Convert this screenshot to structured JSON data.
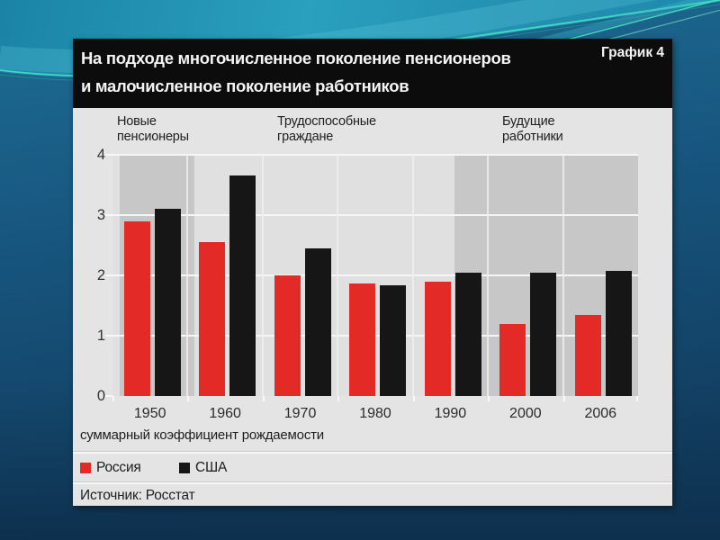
{
  "slide": {
    "corner_label": "График 4"
  },
  "header": {
    "title_line1": "На подходе многочисленное поколение пенсионеров",
    "title_line2": "и малочисленное поколение работников"
  },
  "chart_data": {
    "type": "bar",
    "title": "На подходе многочисленное поколение пенсионеров и малочисленное поколение работников",
    "categories": [
      "1950",
      "1960",
      "1970",
      "1980",
      "1990",
      "2000",
      "2006"
    ],
    "series": [
      {
        "name": "Россия",
        "color": "#e32a26",
        "values": [
          2.9,
          2.55,
          2.0,
          1.87,
          1.89,
          1.2,
          1.35
        ]
      },
      {
        "name": "США",
        "color": "#161616",
        "values": [
          3.1,
          3.65,
          2.45,
          1.83,
          2.05,
          2.05,
          2.08
        ]
      }
    ],
    "ylim": [
      0,
      4
    ],
    "yticks": [
      0,
      1,
      2,
      3,
      4
    ],
    "grid": "white horizontal lines at each integer, vertical column separators",
    "legend_position": "bottom",
    "region_labels": [
      {
        "line1": "Новые",
        "line2": "пенсионеры"
      },
      {
        "line1": "Трудоспособные",
        "line2": "граждане"
      },
      {
        "line1": "Будущие",
        "line2": "работники"
      }
    ],
    "axis_note": "суммарный коэффициент рождаемости",
    "source": "Источник: Росстат"
  },
  "legend": {
    "items": [
      {
        "label": "Россия",
        "color": "#e32a26"
      },
      {
        "label": "США",
        "color": "#161616"
      }
    ]
  },
  "colors": {
    "russia_bar": "#e32a26",
    "usa_bar": "#161616",
    "plot_background": "#e0e0e0",
    "highlight_band": "#c7c7c7",
    "panel_background": "#e4e4e4",
    "title_box": "#0c0c0c",
    "slide_teal": "#2a9fbe",
    "slide_blue": "#17557e"
  }
}
